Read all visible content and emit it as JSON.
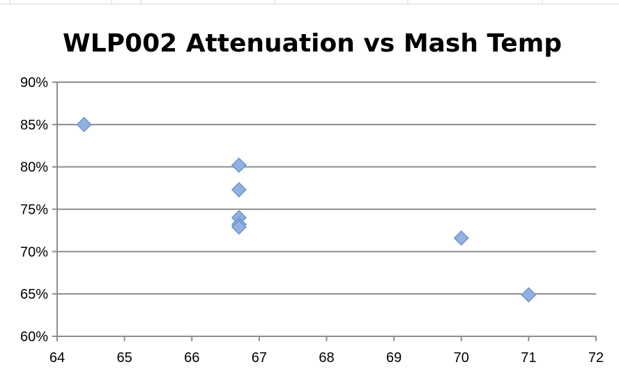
{
  "chart_data": {
    "type": "scatter",
    "title": "WLP002 Attenuation vs Mash Temp",
    "xlabel": "",
    "ylabel": "",
    "xlim": [
      64,
      72
    ],
    "ylim": [
      0.6,
      0.9
    ],
    "x_ticks": [
      "64",
      "65",
      "66",
      "67",
      "68",
      "69",
      "70",
      "71",
      "72"
    ],
    "y_ticks": [
      "60%",
      "65%",
      "70%",
      "75%",
      "80%",
      "85%",
      "90%"
    ],
    "grid": true,
    "legend": "none",
    "marker": "diamond",
    "marker_color": "#8fb2e3",
    "marker_edge_color": "#6f93c8",
    "series": [
      {
        "points": [
          {
            "x": 64.4,
            "y": 0.85
          },
          {
            "x": 66.7,
            "y": 0.802
          },
          {
            "x": 66.7,
            "y": 0.773
          },
          {
            "x": 66.7,
            "y": 0.74
          },
          {
            "x": 66.7,
            "y": 0.732
          },
          {
            "x": 66.7,
            "y": 0.729
          },
          {
            "x": 70.0,
            "y": 0.716
          },
          {
            "x": 71.0,
            "y": 0.649
          }
        ]
      }
    ]
  }
}
